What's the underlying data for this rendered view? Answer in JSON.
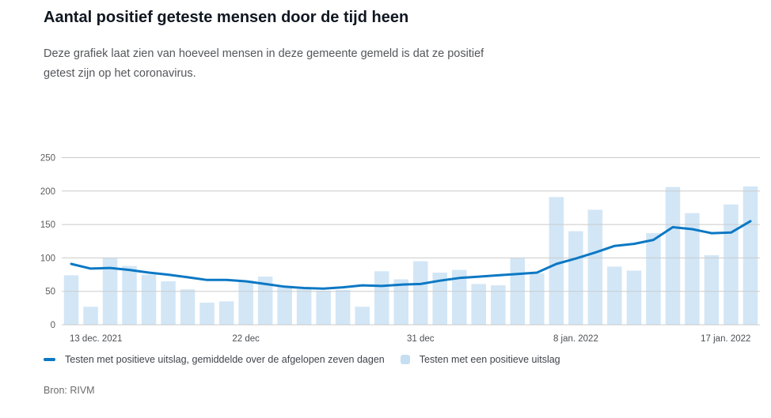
{
  "header": {
    "title": "Aantal positief geteste mensen door de tijd heen",
    "subtitle": "Deze grafiek laat zien van hoeveel mensen in deze gemeente gemeld is dat ze positief getest zijn op het coronavirus."
  },
  "chart_data": {
    "type": "bar",
    "categories": [
      "13 dec 2021",
      "14 dec 2021",
      "15 dec 2021",
      "16 dec 2021",
      "17 dec 2021",
      "18 dec 2021",
      "19 dec 2021",
      "20 dec 2021",
      "21 dec 2021",
      "22 dec 2021",
      "23 dec 2021",
      "24 dec 2021",
      "25 dec 2021",
      "26 dec 2021",
      "27 dec 2021",
      "28 dec 2021",
      "29 dec 2021",
      "30 dec 2021",
      "31 dec 2021",
      "1 jan 2022",
      "2 jan 2022",
      "3 jan 2022",
      "4 jan 2022",
      "5 jan 2022",
      "6 jan 2022",
      "7 jan 2022",
      "8 jan 2022",
      "9 jan 2022",
      "10 jan 2022",
      "11 jan 2022",
      "12 jan 2022",
      "13 jan 2022",
      "14 jan 2022",
      "15 jan 2022",
      "16 jan 2022",
      "17 jan 2022"
    ],
    "series": [
      {
        "name": "Testen met een positieve uitslag",
        "type": "bar",
        "values": [
          74,
          27,
          100,
          88,
          75,
          65,
          53,
          33,
          35,
          66,
          72,
          58,
          53,
          51,
          52,
          27,
          80,
          68,
          95,
          78,
          82,
          61,
          59,
          100,
          77,
          191,
          140,
          172,
          87,
          81,
          137,
          206,
          167,
          104,
          180,
          207
        ]
      },
      {
        "name": "Testen met positieve uitslag, gemiddelde over de afgelopen zeven dagen",
        "type": "line",
        "values": [
          91,
          84,
          85,
          82,
          78,
          75,
          71,
          67,
          67,
          65,
          61,
          57,
          55,
          54,
          56,
          59,
          58,
          60,
          61,
          66,
          70,
          72,
          74,
          76,
          78,
          91,
          99,
          108,
          118,
          121,
          127,
          146,
          143,
          137,
          138,
          155
        ]
      }
    ],
    "ylim": [
      0,
      250
    ],
    "yticks": [
      0,
      50,
      100,
      150,
      200,
      250
    ],
    "x_tick_labels": [
      {
        "index": 0,
        "label": "13 dec. 2021"
      },
      {
        "index": 9,
        "label": "22 dec"
      },
      {
        "index": 18,
        "label": "31 dec"
      },
      {
        "index": 26,
        "label": "8 jan. 2022"
      },
      {
        "index": 35,
        "label": "17 jan. 2022"
      }
    ],
    "grid": true,
    "legend_position": "bottom"
  },
  "legend": [
    {
      "label": "Testen met positieve uitslag, gemiddelde over de afgelopen zeven dagen",
      "swatch": "line"
    },
    {
      "label": "Testen met een positieve uitslag",
      "swatch": "square"
    }
  ],
  "source": {
    "label": "Bron: RIVM"
  },
  "colors": {
    "line": "#0c78c4",
    "bar": "#d2e6f6",
    "legend_bar_swatch": "#c6def2",
    "grid": "#cbcbcb",
    "title": "#101721",
    "subtitle": "#54565b",
    "y_tick": "#5a5c5e",
    "x_tick": "#4c4f54",
    "source": "#6b6b6b"
  }
}
